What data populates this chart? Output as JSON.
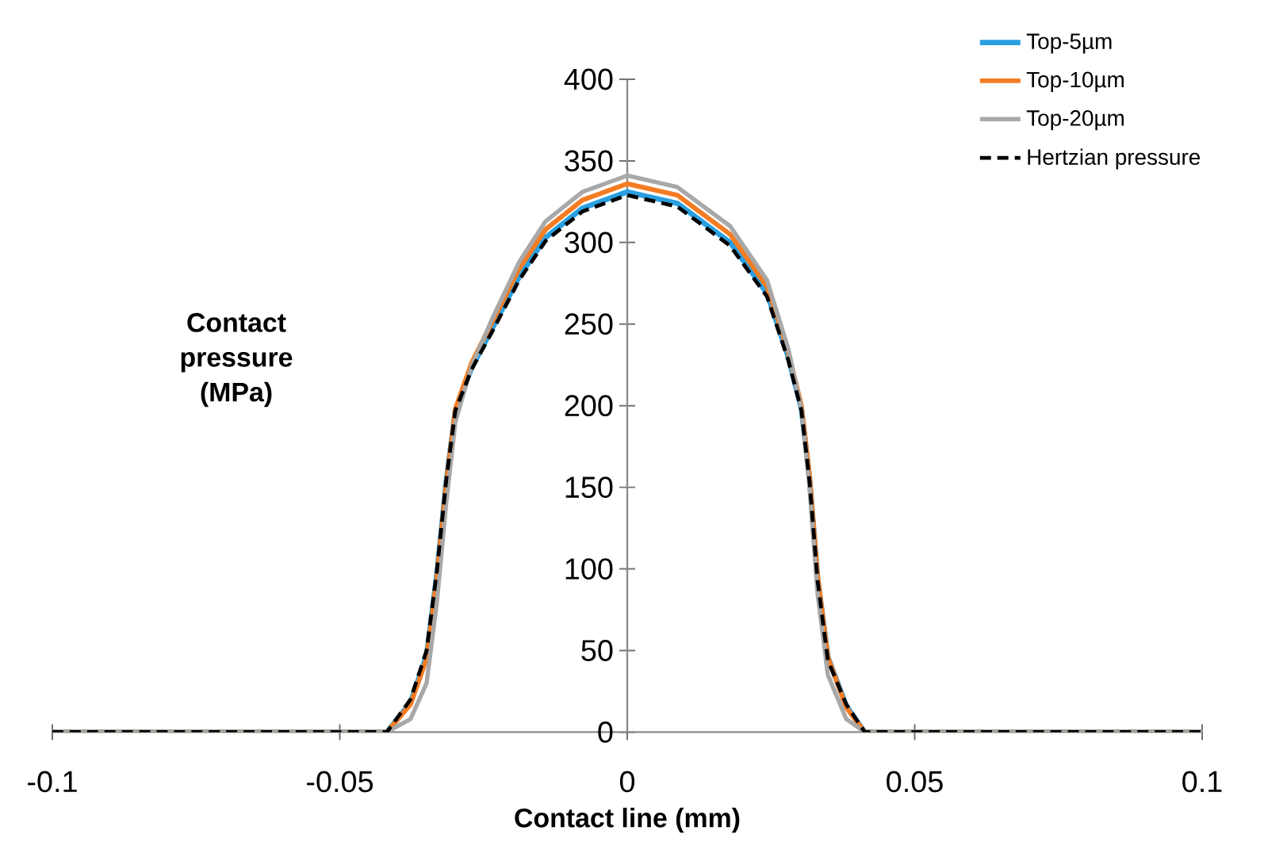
{
  "chart_data": {
    "type": "line",
    "xlabel": "Contact line (mm)",
    "ylabel": "Contact pressure (MPa)",
    "x": [
      -0.1,
      -0.0418,
      -0.0377,
      -0.0349,
      -0.0331,
      -0.0315,
      -0.0299,
      -0.0271,
      -0.0234,
      -0.0188,
      -0.0142,
      -0.0078,
      0,
      0.0087,
      0.0179,
      0.0243,
      0.028,
      0.0303,
      0.0317,
      0.0331,
      0.0349,
      0.0381,
      0.0413,
      0.1
    ],
    "series": [
      {
        "name": "Top-5µm",
        "color": "#2a9fe0",
        "line_style": "solid",
        "values": [
          0,
          0,
          18,
          47,
          97,
          153,
          197,
          223,
          248,
          279,
          303,
          321,
          331,
          324,
          300,
          269,
          230,
          198,
          156,
          95,
          46,
          16,
          0,
          0
        ]
      },
      {
        "name": "Top-10µm",
        "color": "#f47c22",
        "line_style": "solid",
        "values": [
          0,
          0,
          17,
          45,
          95,
          152,
          198,
          226,
          252,
          284,
          308,
          326,
          336,
          329,
          305,
          273,
          233,
          200,
          157,
          96,
          46,
          15,
          0,
          0
        ]
      },
      {
        "name": "Top-20µm",
        "color": "#a8a8a8",
        "line_style": "solid",
        "values": [
          0,
          0,
          8,
          30,
          80,
          140,
          190,
          224,
          254,
          288,
          313,
          331,
          341,
          334,
          310,
          277,
          235,
          198,
          150,
          85,
          35,
          8,
          0,
          0
        ]
      },
      {
        "name": "Hertzian pressure",
        "color": "#000000",
        "line_style": "dashed",
        "values": [
          0,
          0,
          20,
          50,
          99,
          154,
          197,
          222,
          246,
          277,
          301,
          319,
          329,
          322,
          298,
          267,
          228,
          197,
          154,
          93,
          44,
          17,
          0,
          0
        ]
      }
    ],
    "xlim": [
      -0.1,
      0.1
    ],
    "ylim": [
      0,
      400
    ],
    "xticks": [
      -0.1,
      -0.05,
      0,
      0.05,
      0.1
    ],
    "yticks": [
      0,
      50,
      100,
      150,
      200,
      250,
      300,
      350,
      400
    ],
    "legend": "top right",
    "marker": "none"
  }
}
